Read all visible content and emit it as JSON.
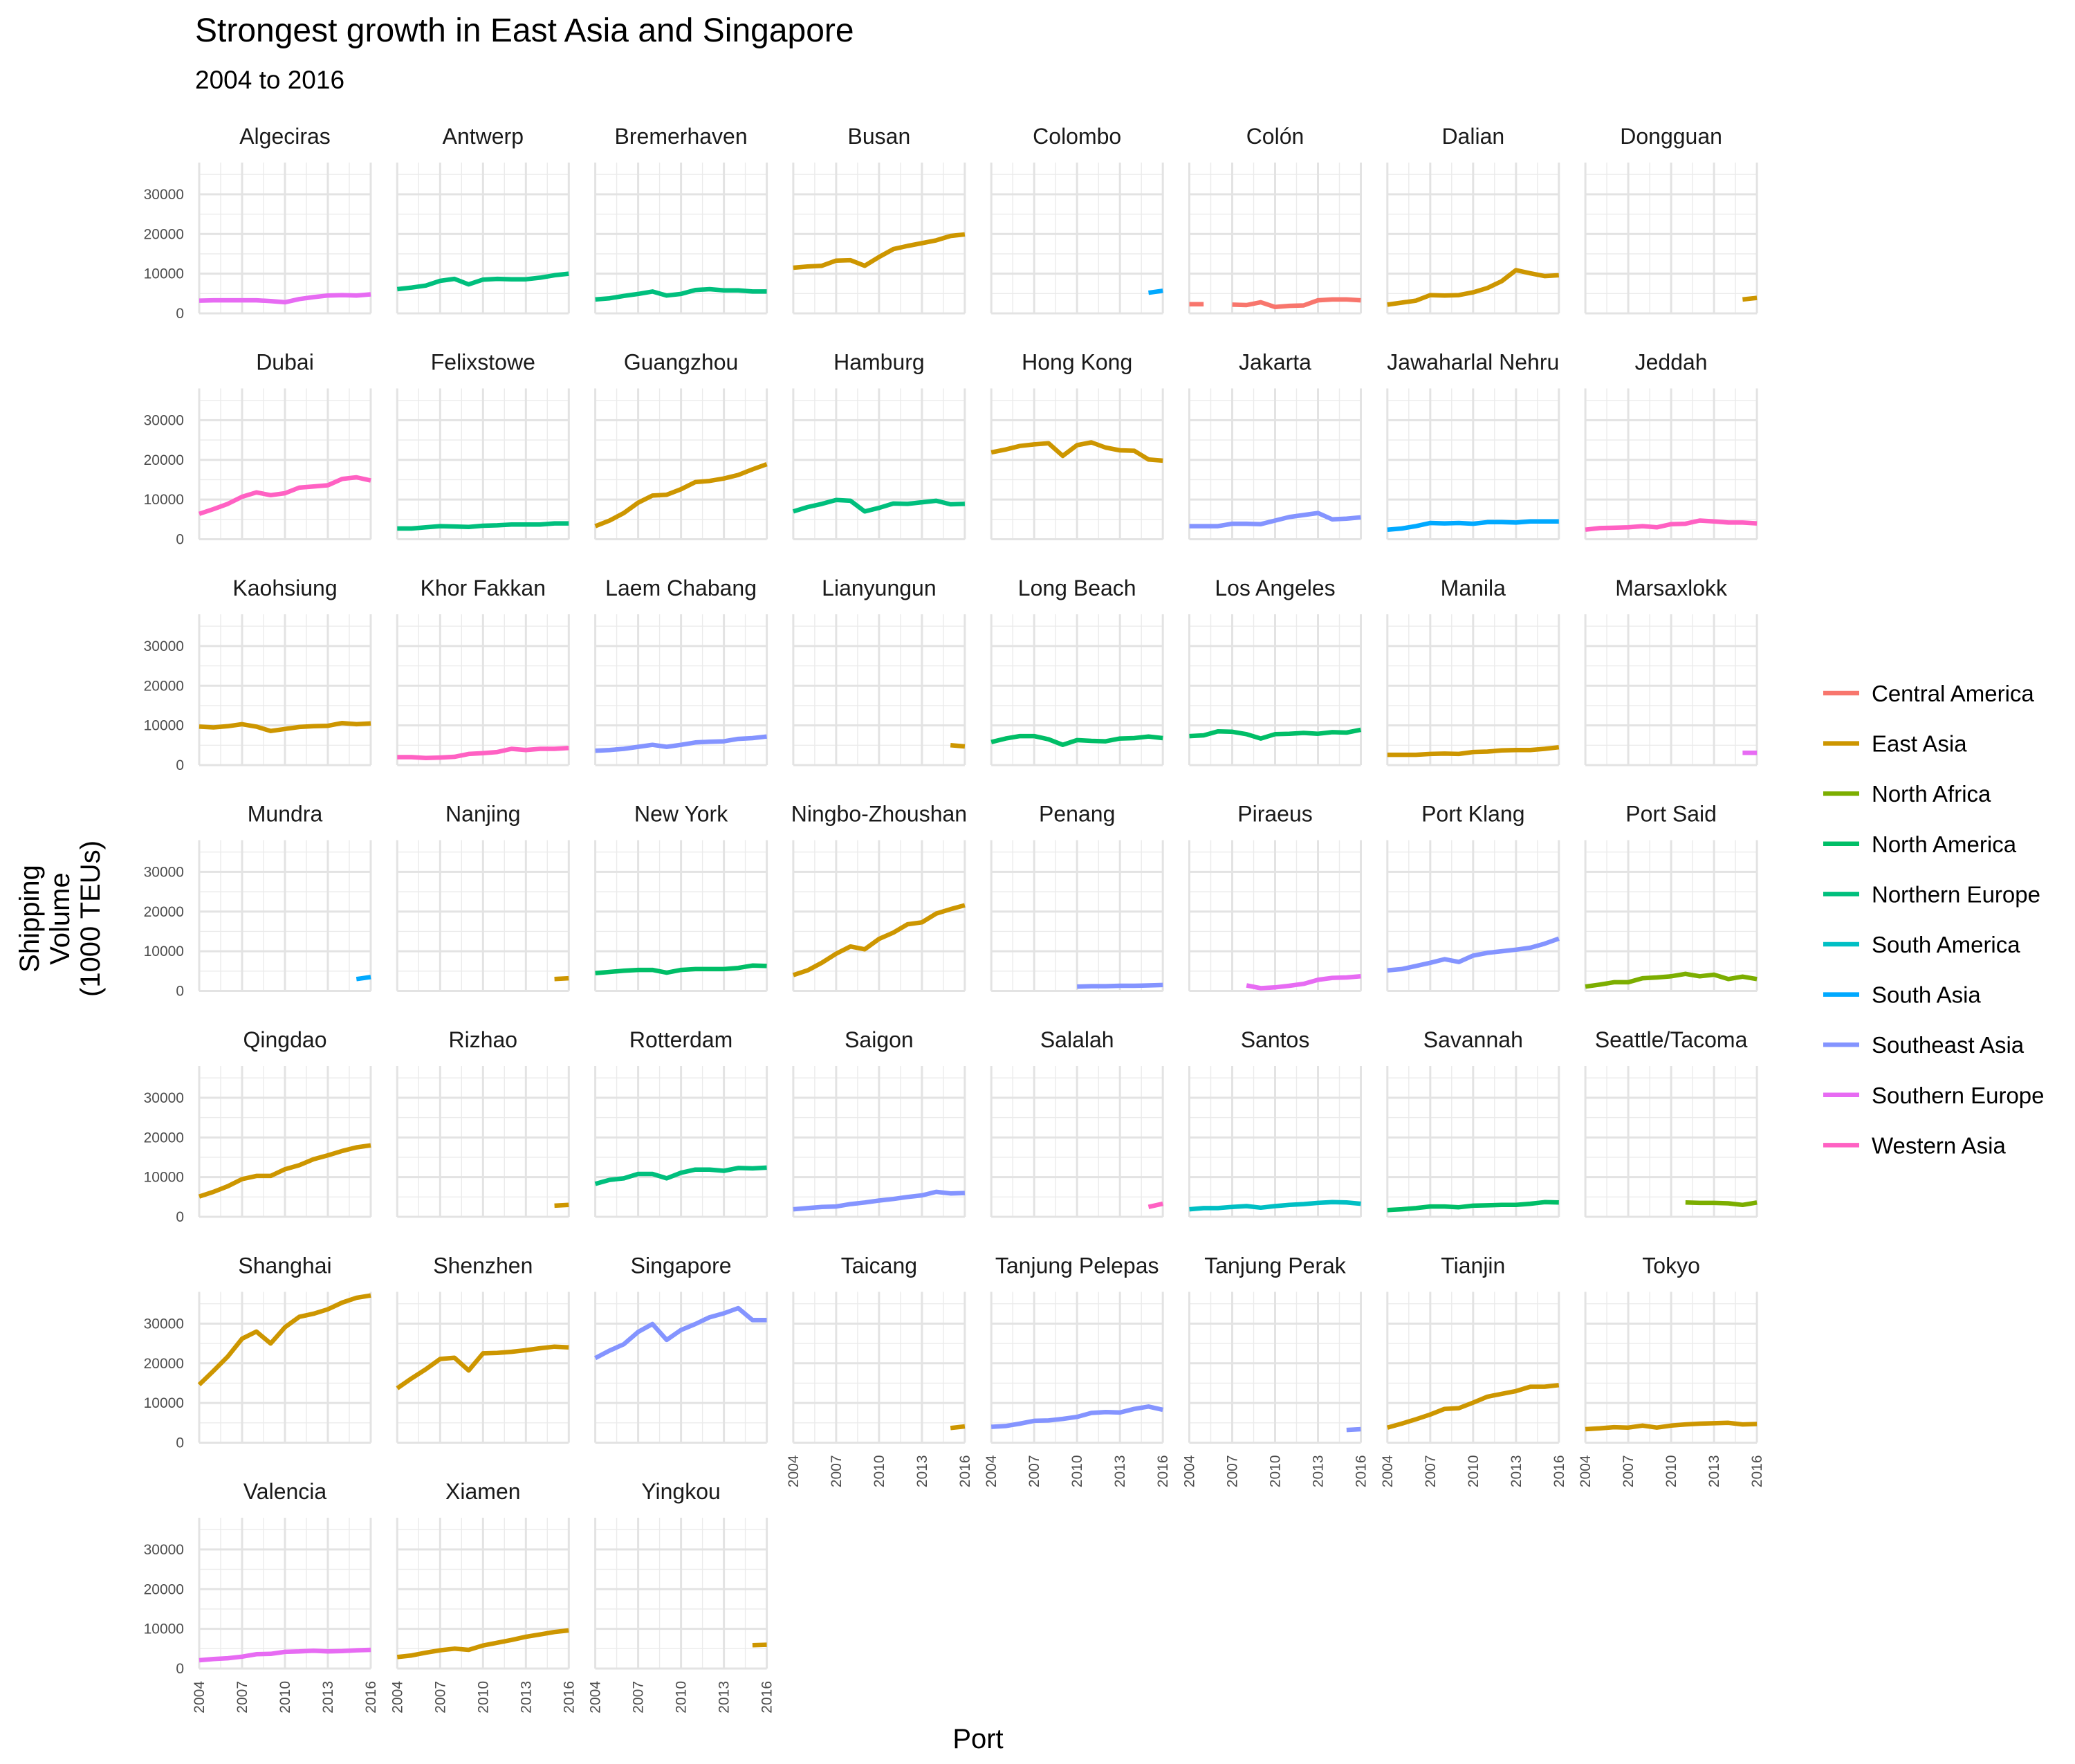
{
  "chart_data": {
    "type": "line",
    "title": "Strongest growth in East Asia and Singapore",
    "subtitle": "2004 to 2016",
    "xlabel": "Port",
    "ylabel_lines": [
      "Shipping",
      "Volume",
      "(1000 TEUs)"
    ],
    "ylim": [
      0,
      38000
    ],
    "y_ticks": [
      0,
      10000,
      20000,
      30000
    ],
    "x_range": [
      2004,
      2016
    ],
    "x_ticks": [
      2004,
      2007,
      2010,
      2013,
      2016
    ],
    "grid": true,
    "legend_position": "right",
    "facet_columns": 8,
    "region_colors": {
      "Central America": "#F8766D",
      "East Asia": "#CD9600",
      "North Africa": "#7CAE00",
      "North America": "#00BE67",
      "Northern Europe": "#00BF7D",
      "South America": "#00BFC4",
      "South Asia": "#00A9FF",
      "Southeast Asia": "#8494FF",
      "Southern Europe": "#E76BF3",
      "Western Asia": "#FF61C3"
    },
    "legend": [
      {
        "label": "Central America",
        "color": "#F8766D"
      },
      {
        "label": "East Asia",
        "color": "#CD9600"
      },
      {
        "label": "North Africa",
        "color": "#7CAE00"
      },
      {
        "label": "North America",
        "color": "#00BE67"
      },
      {
        "label": "Northern Europe",
        "color": "#00BF7D"
      },
      {
        "label": "South America",
        "color": "#00BFC4"
      },
      {
        "label": "South Asia",
        "color": "#00A9FF"
      },
      {
        "label": "Southeast Asia",
        "color": "#8494FF"
      },
      {
        "label": "Southern Europe",
        "color": "#E76BF3"
      },
      {
        "label": "Western Asia",
        "color": "#FF61C3"
      }
    ],
    "x": [
      2004,
      2005,
      2006,
      2007,
      2008,
      2009,
      2010,
      2011,
      2012,
      2013,
      2014,
      2015,
      2016
    ],
    "series": [
      {
        "name": "Algeciras",
        "region": "Southern Europe",
        "values": [
          3200,
          3300,
          3300,
          3300,
          3300,
          3100,
          2800,
          3600,
          4100,
          4500,
          4600,
          4500,
          4800
        ]
      },
      {
        "name": "Antwerp",
        "region": "Northern Europe",
        "values": [
          6100,
          6500,
          7000,
          8200,
          8700,
          7300,
          8500,
          8700,
          8600,
          8600,
          9000,
          9600,
          10000
        ]
      },
      {
        "name": "Bremerhaven",
        "region": "Northern Europe",
        "values": [
          3500,
          3800,
          4400,
          4900,
          5500,
          4500,
          4900,
          5900,
          6100,
          5800,
          5800,
          5500,
          5500
        ]
      },
      {
        "name": "Busan",
        "region": "East Asia",
        "values": [
          11500,
          11800,
          12000,
          13300,
          13400,
          12000,
          14200,
          16200,
          17000,
          17700,
          18400,
          19500,
          19900
        ]
      },
      {
        "name": "Colombo",
        "region": "South Asia",
        "values": [
          null,
          null,
          null,
          null,
          null,
          null,
          null,
          null,
          null,
          null,
          null,
          5200,
          5700
        ]
      },
      {
        "name": "Colón",
        "region": "Central America",
        "values": [
          2300,
          2300,
          null,
          2200,
          2100,
          2800,
          1600,
          1900,
          2000,
          3300,
          3500,
          3500,
          3300
        ]
      },
      {
        "name": "Dalian",
        "region": "East Asia",
        "values": [
          2200,
          2700,
          3200,
          4600,
          4500,
          4600,
          5300,
          6400,
          8100,
          10900,
          10100,
          9400,
          9600
        ]
      },
      {
        "name": "Dongguan",
        "region": "East Asia",
        "values": [
          null,
          null,
          null,
          null,
          null,
          null,
          null,
          null,
          null,
          null,
          null,
          3500,
          3900
        ]
      },
      {
        "name": "Dubai",
        "region": "Western Asia",
        "values": [
          6400,
          7600,
          8900,
          10700,
          11800,
          11100,
          11600,
          13000,
          13300,
          13600,
          15200,
          15600,
          14800
        ]
      },
      {
        "name": "Felixstowe",
        "region": "Northern Europe",
        "values": [
          2700,
          2700,
          3000,
          3300,
          3200,
          3100,
          3400,
          3500,
          3700,
          3700,
          3700,
          4000,
          4000
        ]
      },
      {
        "name": "Guangzhou",
        "region": "East Asia",
        "values": [
          3300,
          4700,
          6600,
          9200,
          11000,
          11200,
          12600,
          14400,
          14700,
          15300,
          16200,
          17600,
          18900
        ]
      },
      {
        "name": "Hamburg",
        "region": "Northern Europe",
        "values": [
          7000,
          8100,
          8900,
          9900,
          9700,
          7000,
          7900,
          9000,
          8900,
          9300,
          9700,
          8800,
          8900
        ]
      },
      {
        "name": "Hong Kong",
        "region": "East Asia",
        "values": [
          21900,
          22600,
          23500,
          23900,
          24200,
          21000,
          23700,
          24400,
          23100,
          22400,
          22300,
          20100,
          19800
        ]
      },
      {
        "name": "Jakarta",
        "region": "Southeast Asia",
        "values": [
          3300,
          3300,
          3300,
          3900,
          3900,
          3800,
          4700,
          5600,
          6100,
          6600,
          5000,
          5200,
          5500
        ]
      },
      {
        "name": "Jawaharlal Nehru",
        "region": "South Asia",
        "values": [
          2400,
          2700,
          3300,
          4100,
          4000,
          4100,
          3900,
          4300,
          4300,
          4200,
          4500,
          4500,
          4500
        ]
      },
      {
        "name": "Jeddah",
        "region": "Western Asia",
        "values": [
          2400,
          2800,
          2900,
          3000,
          3300,
          3000,
          3800,
          3900,
          4700,
          4500,
          4200,
          4200,
          4000
        ]
      },
      {
        "name": "Kaohsiung",
        "region": "East Asia",
        "values": [
          9700,
          9500,
          9800,
          10300,
          9700,
          8600,
          9100,
          9600,
          9800,
          9900,
          10600,
          10300,
          10500
        ]
      },
      {
        "name": "Khor Fakkan",
        "region": "Western Asia",
        "values": [
          2000,
          2000,
          1800,
          1900,
          2100,
          2800,
          3000,
          3300,
          4100,
          3800,
          4100,
          4100,
          4300
        ]
      },
      {
        "name": "Laem Chabang",
        "region": "Southeast Asia",
        "values": [
          3600,
          3800,
          4100,
          4600,
          5100,
          4600,
          5100,
          5700,
          5900,
          6000,
          6600,
          6800,
          7200
        ]
      },
      {
        "name": "Lianyungun",
        "region": "East Asia",
        "values": [
          null,
          null,
          null,
          null,
          null,
          null,
          null,
          null,
          null,
          null,
          null,
          5000,
          4700
        ]
      },
      {
        "name": "Long Beach",
        "region": "North America",
        "values": [
          5800,
          6700,
          7300,
          7300,
          6500,
          5100,
          6300,
          6100,
          6000,
          6700,
          6800,
          7200,
          6800
        ]
      },
      {
        "name": "Los Angeles",
        "region": "North America",
        "values": [
          7300,
          7500,
          8500,
          8400,
          7800,
          6700,
          7800,
          7900,
          8100,
          7900,
          8300,
          8200,
          8900
        ]
      },
      {
        "name": "Manila",
        "region": "East Asia",
        "values": [
          2600,
          2600,
          2600,
          2800,
          2900,
          2800,
          3300,
          3400,
          3700,
          3800,
          3800,
          4100,
          4500
        ]
      },
      {
        "name": "Marsaxlokk",
        "region": "Southern Europe",
        "values": [
          null,
          null,
          null,
          null,
          null,
          null,
          null,
          null,
          null,
          null,
          null,
          3100,
          3100
        ]
      },
      {
        "name": "Mundra",
        "region": "South Asia",
        "values": [
          null,
          null,
          null,
          null,
          null,
          null,
          null,
          null,
          null,
          null,
          null,
          3000,
          3500
        ]
      },
      {
        "name": "Nanjing",
        "region": "East Asia",
        "values": [
          null,
          null,
          null,
          null,
          null,
          null,
          null,
          null,
          null,
          null,
          null,
          3000,
          3200
        ]
      },
      {
        "name": "New York",
        "region": "North America",
        "values": [
          4500,
          4800,
          5100,
          5300,
          5300,
          4600,
          5300,
          5500,
          5500,
          5500,
          5800,
          6400,
          6300
        ]
      },
      {
        "name": "Ningbo-Zhoushan",
        "region": "East Asia",
        "values": [
          4000,
          5200,
          7100,
          9400,
          11200,
          10500,
          13100,
          14700,
          16800,
          17300,
          19500,
          20600,
          21600
        ]
      },
      {
        "name": "Penang",
        "region": "Southeast Asia",
        "values": [
          null,
          null,
          null,
          null,
          null,
          null,
          1100,
          1200,
          1200,
          1300,
          1300,
          1400,
          1500
        ]
      },
      {
        "name": "Piraeus",
        "region": "Southern Europe",
        "values": [
          null,
          null,
          null,
          null,
          1400,
          700,
          900,
          1300,
          1800,
          2800,
          3300,
          3400,
          3700
        ]
      },
      {
        "name": "Port Klang",
        "region": "Southeast Asia",
        "values": [
          5200,
          5500,
          6300,
          7100,
          8000,
          7300,
          8900,
          9600,
          10000,
          10400,
          10900,
          11900,
          13200
        ]
      },
      {
        "name": "Port Said",
        "region": "North Africa",
        "values": [
          1100,
          1600,
          2200,
          2200,
          3200,
          3400,
          3700,
          4300,
          3700,
          4100,
          3000,
          3600,
          3000
        ]
      },
      {
        "name": "Qingdao",
        "region": "East Asia",
        "values": [
          5100,
          6300,
          7700,
          9500,
          10300,
          10300,
          12000,
          13000,
          14500,
          15500,
          16600,
          17500,
          18000
        ]
      },
      {
        "name": "Rizhao",
        "region": "East Asia",
        "values": [
          null,
          null,
          null,
          null,
          null,
          null,
          null,
          null,
          null,
          null,
          null,
          2800,
          3000
        ]
      },
      {
        "name": "Rotterdam",
        "region": "Northern Europe",
        "values": [
          8300,
          9300,
          9700,
          10800,
          10800,
          9700,
          11100,
          11900,
          11900,
          11600,
          12300,
          12200,
          12400
        ]
      },
      {
        "name": "Saigon",
        "region": "Southeast Asia",
        "values": [
          1900,
          2200,
          2500,
          2600,
          3200,
          3600,
          4100,
          4500,
          5000,
          5400,
          6300,
          5900,
          6000
        ]
      },
      {
        "name": "Salalah",
        "region": "Western Asia",
        "values": [
          null,
          null,
          null,
          null,
          null,
          null,
          null,
          null,
          null,
          null,
          null,
          2500,
          3300
        ]
      },
      {
        "name": "Santos",
        "region": "South America",
        "values": [
          1900,
          2200,
          2200,
          2500,
          2700,
          2300,
          2700,
          3000,
          3200,
          3500,
          3700,
          3600,
          3300
        ]
      },
      {
        "name": "Savannah",
        "region": "North America",
        "values": [
          1700,
          1900,
          2200,
          2600,
          2600,
          2400,
          2800,
          2900,
          3000,
          3000,
          3300,
          3700,
          3600
        ]
      },
      {
        "name": "Seattle/Tacoma",
        "region": "North Africa",
        "values": [
          null,
          null,
          null,
          null,
          null,
          null,
          null,
          3600,
          3500,
          3500,
          3400,
          3000,
          3600
        ]
      },
      {
        "name": "Shanghai",
        "region": "East Asia",
        "values": [
          14600,
          18100,
          21700,
          26200,
          28000,
          25000,
          29100,
          31700,
          32500,
          33600,
          35300,
          36500,
          37100
        ]
      },
      {
        "name": "Shenzhen",
        "region": "East Asia",
        "values": [
          13700,
          16200,
          18500,
          21100,
          21400,
          18200,
          22500,
          22600,
          22900,
          23300,
          23800,
          24200,
          24000
        ]
      },
      {
        "name": "Singapore",
        "region": "Southeast Asia",
        "values": [
          21300,
          23200,
          24800,
          27900,
          29900,
          25900,
          28400,
          29900,
          31600,
          32600,
          33900,
          30900,
          30900
        ]
      },
      {
        "name": "Taicang",
        "region": "East Asia",
        "values": [
          null,
          null,
          null,
          null,
          null,
          null,
          null,
          null,
          null,
          null,
          null,
          3700,
          4100
        ]
      },
      {
        "name": "Tanjung Pelepas",
        "region": "Southeast Asia",
        "values": [
          4000,
          4200,
          4800,
          5500,
          5600,
          6000,
          6500,
          7500,
          7700,
          7600,
          8500,
          9100,
          8300
        ]
      },
      {
        "name": "Tanjung Perak",
        "region": "Southeast Asia",
        "values": [
          null,
          null,
          null,
          null,
          null,
          null,
          null,
          null,
          null,
          null,
          null,
          3200,
          3400
        ]
      },
      {
        "name": "Tianjin",
        "region": "East Asia",
        "values": [
          3800,
          4800,
          5900,
          7100,
          8500,
          8700,
          10100,
          11600,
          12300,
          13000,
          14100,
          14100,
          14500
        ]
      },
      {
        "name": "Tokyo",
        "region": "East Asia",
        "values": [
          3400,
          3600,
          3900,
          3800,
          4300,
          3800,
          4300,
          4600,
          4800,
          4900,
          5000,
          4600,
          4700
        ]
      },
      {
        "name": "Valencia",
        "region": "Southern Europe",
        "values": [
          2100,
          2400,
          2600,
          3000,
          3600,
          3700,
          4200,
          4300,
          4500,
          4300,
          4400,
          4600,
          4700
        ]
      },
      {
        "name": "Xiamen",
        "region": "East Asia",
        "values": [
          2900,
          3300,
          4000,
          4600,
          5000,
          4700,
          5800,
          6500,
          7200,
          8000,
          8600,
          9200,
          9600
        ]
      },
      {
        "name": "Yingkou",
        "region": "East Asia",
        "values": [
          null,
          null,
          null,
          null,
          null,
          null,
          null,
          null,
          null,
          null,
          null,
          5900,
          6000
        ]
      }
    ]
  }
}
